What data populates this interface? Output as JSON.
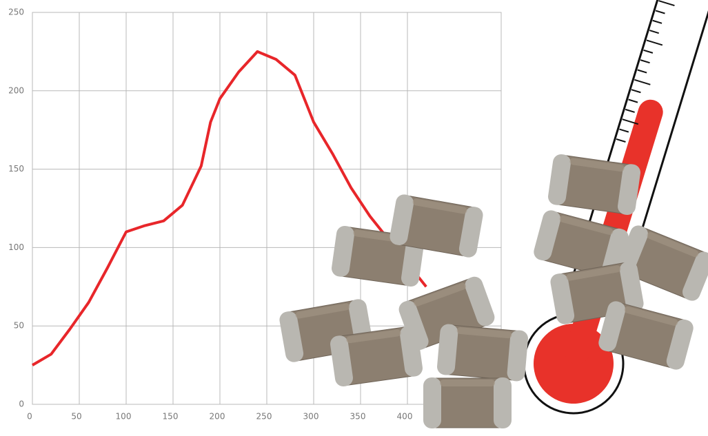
{
  "chart_data": {
    "type": "line",
    "x": [
      0,
      20,
      40,
      60,
      80,
      100,
      120,
      140,
      160,
      180,
      190,
      200,
      220,
      240,
      260,
      280,
      300,
      320,
      340,
      360,
      380,
      400,
      420
    ],
    "series": [
      {
        "color": "#e8262a",
        "values": [
          25,
          32,
          48,
          65,
          87,
          110,
          114,
          117,
          127,
          152,
          180,
          195,
          212,
          225,
          220,
          210,
          180,
          160,
          138,
          120,
          105,
          90,
          75
        ]
      }
    ],
    "xlim": [
      0,
      500
    ],
    "ylim": [
      0,
      250
    ],
    "xticks": [
      0,
      50,
      100,
      150,
      200,
      250,
      300,
      350,
      400
    ],
    "yticks": [
      0,
      50,
      100,
      150,
      200,
      250
    ],
    "grid": true
  }
}
